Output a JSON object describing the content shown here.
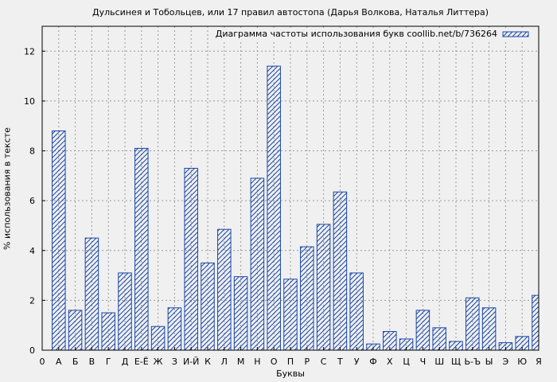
{
  "chart_data": {
    "type": "bar",
    "title": "Дульсинея и Тобольцев, или 17 правил автостопа (Дарья Волкова, Наталья Литтера)",
    "xlabel": "Буквы",
    "ylabel": "% использования в тексте",
    "ylim": [
      0,
      13
    ],
    "yticks": [
      0,
      2,
      4,
      6,
      8,
      10,
      12
    ],
    "grid": true,
    "legend_position": "top-right",
    "series": [
      {
        "name": "Диаграмма частоты использования букв coollib.net/b/736264",
        "color": "#1a47a8",
        "pattern": "hatched"
      }
    ],
    "categories": [
      "0",
      "А",
      "Б",
      "В",
      "Г",
      "Д",
      "Е-Ё",
      "Ж",
      "З",
      "И-Й",
      "К",
      "Л",
      "М",
      "Н",
      "О",
      "П",
      "Р",
      "С",
      "Т",
      "У",
      "Ф",
      "Х",
      "Ц",
      "Ч",
      "Ш",
      "Щ",
      "Ь-Ъ",
      "Ы",
      "Э",
      "Ю",
      "Я"
    ],
    "values": [
      0,
      8.8,
      1.6,
      4.5,
      1.5,
      3.1,
      8.1,
      0.95,
      1.7,
      7.3,
      3.5,
      4.85,
      2.95,
      6.9,
      11.4,
      2.85,
      4.15,
      5.05,
      6.35,
      3.1,
      0.25,
      0.75,
      0.45,
      1.6,
      0.9,
      0.35,
      2.1,
      1.7,
      0.3,
      0.55,
      2.2
    ]
  }
}
